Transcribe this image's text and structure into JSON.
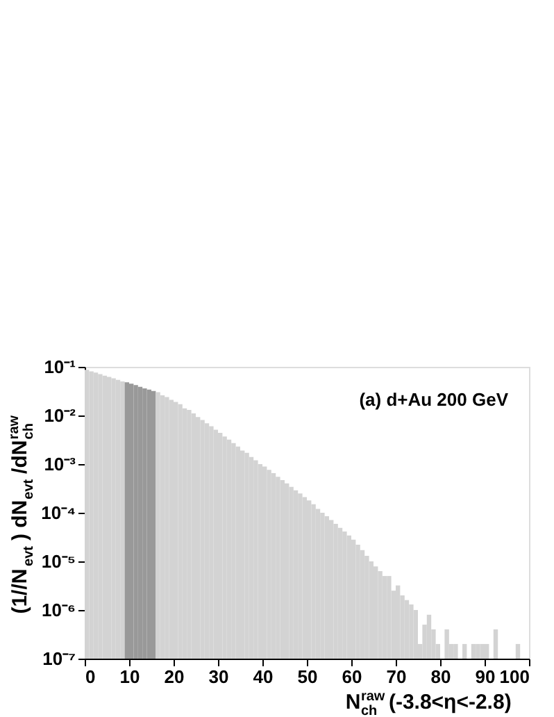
{
  "chart_data": {
    "type": "histogram",
    "bins": [
      0,
      1,
      2,
      3,
      4,
      5,
      6,
      7,
      8,
      9,
      10,
      11,
      12,
      13,
      14,
      15,
      16,
      17,
      18,
      19,
      20,
      21,
      22,
      23,
      24,
      25,
      26,
      27,
      28,
      29,
      30,
      31,
      32,
      33,
      34,
      35,
      36,
      37,
      38,
      39,
      40,
      41,
      42,
      43,
      44,
      45,
      46,
      47,
      48,
      49,
      50,
      51,
      52,
      53,
      54,
      55,
      56,
      57,
      58,
      59,
      60,
      61,
      62,
      63,
      64,
      65,
      66,
      67,
      68,
      69,
      70,
      71,
      72,
      73,
      74,
      75,
      76,
      77,
      78,
      79,
      80,
      81,
      82,
      83,
      84,
      85,
      86,
      87,
      88,
      89,
      90,
      91,
      92,
      93,
      94,
      95,
      96,
      97,
      98,
      99,
      100
    ],
    "values": [
      0.087,
      0.081,
      0.076,
      0.071,
      0.066,
      0.062,
      0.058,
      0.054,
      0.05,
      0.048,
      0.045,
      0.042,
      0.039,
      0.036,
      0.034,
      0.032,
      0.03,
      0.026,
      0.024,
      0.021,
      0.019,
      0.017,
      0.014,
      0.013,
      0.011,
      0.0093,
      0.0081,
      0.0069,
      0.006,
      0.0051,
      0.0044,
      0.0037,
      0.0032,
      0.0027,
      0.0023,
      0.0019,
      0.0017,
      0.0014,
      0.0012,
      0.001,
      0.00089,
      0.00076,
      0.00065,
      0.00055,
      0.00047,
      0.0004,
      0.00034,
      0.00029,
      0.00025,
      0.00021,
      0.00018,
      0.00015,
      0.00012,
      0.0001,
      8.5e-05,
      7.1e-05,
      5.9e-05,
      4.9e-05,
      4.1e-05,
      3.4e-05,
      2.8e-05,
      2.2e-05,
      1.7e-05,
      1.3e-05,
      1e-05,
      7.9e-06,
      6.3e-06,
      5e-06,
      5e-06,
      2.5e-06,
      3.2e-06,
      2e-06,
      1.6e-06,
      1.3e-06,
      1e-06,
      2e-07,
      5e-07,
      8e-07,
      4e-07,
      2e-07,
      null,
      4e-07,
      2e-07,
      2e-07,
      null,
      2e-07,
      null,
      2e-07,
      2e-07,
      2e-07,
      2e-07,
      null,
      4e-07,
      null,
      null,
      null,
      null,
      2e-07,
      null,
      null
    ],
    "colors": [
      "#d3d3d3",
      "#d3d3d3",
      "#d3d3d3",
      "#d3d3d3",
      "#d3d3d3",
      "#d3d3d3",
      "#d3d3d3",
      "#d3d3d3",
      "#d3d3d3",
      "#999999",
      "#999999",
      "#999999",
      "#999999",
      "#999999",
      "#999999",
      "#999999",
      "#d3d3d3",
      "#d3d3d3",
      "#d3d3d3",
      "#d3d3d3",
      "#d3d3d3",
      "#d3d3d3",
      "#d3d3d3",
      "#d3d3d3",
      "#d3d3d3",
      "#d3d3d3",
      "#d3d3d3",
      "#d3d3d3",
      "#d3d3d3",
      "#d3d3d3",
      "#d3d3d3",
      "#d3d3d3",
      "#d3d3d3",
      "#d3d3d3",
      "#d3d3d3",
      "#d3d3d3",
      "#d3d3d3",
      "#d3d3d3",
      "#d3d3d3",
      "#d3d3d3",
      "#d3d3d3",
      "#d3d3d3",
      "#d3d3d3",
      "#d3d3d3",
      "#d3d3d3",
      "#d3d3d3",
      "#d3d3d3",
      "#d3d3d3",
      "#d3d3d3",
      "#d3d3d3",
      "#d3d3d3",
      "#d3d3d3",
      "#d3d3d3",
      "#d3d3d3",
      "#d3d3d3",
      "#d3d3d3",
      "#d3d3d3",
      "#d3d3d3",
      "#d3d3d3",
      "#d3d3d3",
      "#d3d3d3",
      "#d3d3d3",
      "#d3d3d3",
      "#d3d3d3",
      "#d3d3d3",
      "#d3d3d3",
      "#d3d3d3",
      "#d3d3d3",
      "#d3d3d3",
      "#d3d3d3",
      "#d3d3d3",
      "#d3d3d3",
      "#d3d3d3",
      "#d3d3d3",
      "#d3d3d3",
      "#d3d3d3",
      "#d3d3d3",
      "#d3d3d3",
      "#d3d3d3",
      "#d3d3d3",
      "#d3d3d3",
      "#d3d3d3",
      "#d3d3d3",
      "#d3d3d3",
      "#d3d3d3",
      "#d3d3d3",
      "#d3d3d3",
      "#d3d3d3",
      "#d3d3d3",
      "#d3d3d3",
      "#d3d3d3",
      "#d3d3d3",
      "#d3d3d3",
      "#d3d3d3",
      "#d3d3d3",
      "#d3d3d3",
      "#d3d3d3",
      "#d3d3d3",
      "#d3d3d3",
      "#d3d3d3"
    ],
    "xlabel": "N$^{raw}$$_{ch}$ (-3.8<η<-2.8)",
    "ylabel": "(1//N$_{evt}$) dN$_{evt}$/dN$^{raw}$$_{ch}$",
    "annotations": [
      "(a) d+Au 200 GeV"
    ],
    "log": true,
    "xlim": [
      0,
      100
    ],
    "xticks": [
      0,
      10,
      20,
      30,
      40,
      50,
      60,
      70,
      80,
      90,
      100
    ],
    "ylim": [
      1e-07,
      0.1
    ],
    "yticks": [
      {
        "value": 1e-07,
        "label": "10⁻⁷"
      },
      {
        "value": 1e-06,
        "label": "10⁻⁶"
      },
      {
        "value": 1e-05,
        "label": "10⁻⁵"
      },
      {
        "value": 0.0001,
        "label": "10⁻⁴"
      },
      {
        "value": 0.001,
        "label": "10⁻³"
      },
      {
        "value": 0.01,
        "label": "10⁻²"
      },
      {
        "value": 0.1,
        "label": "10⁻¹"
      }
    ],
    "grid": false
  }
}
